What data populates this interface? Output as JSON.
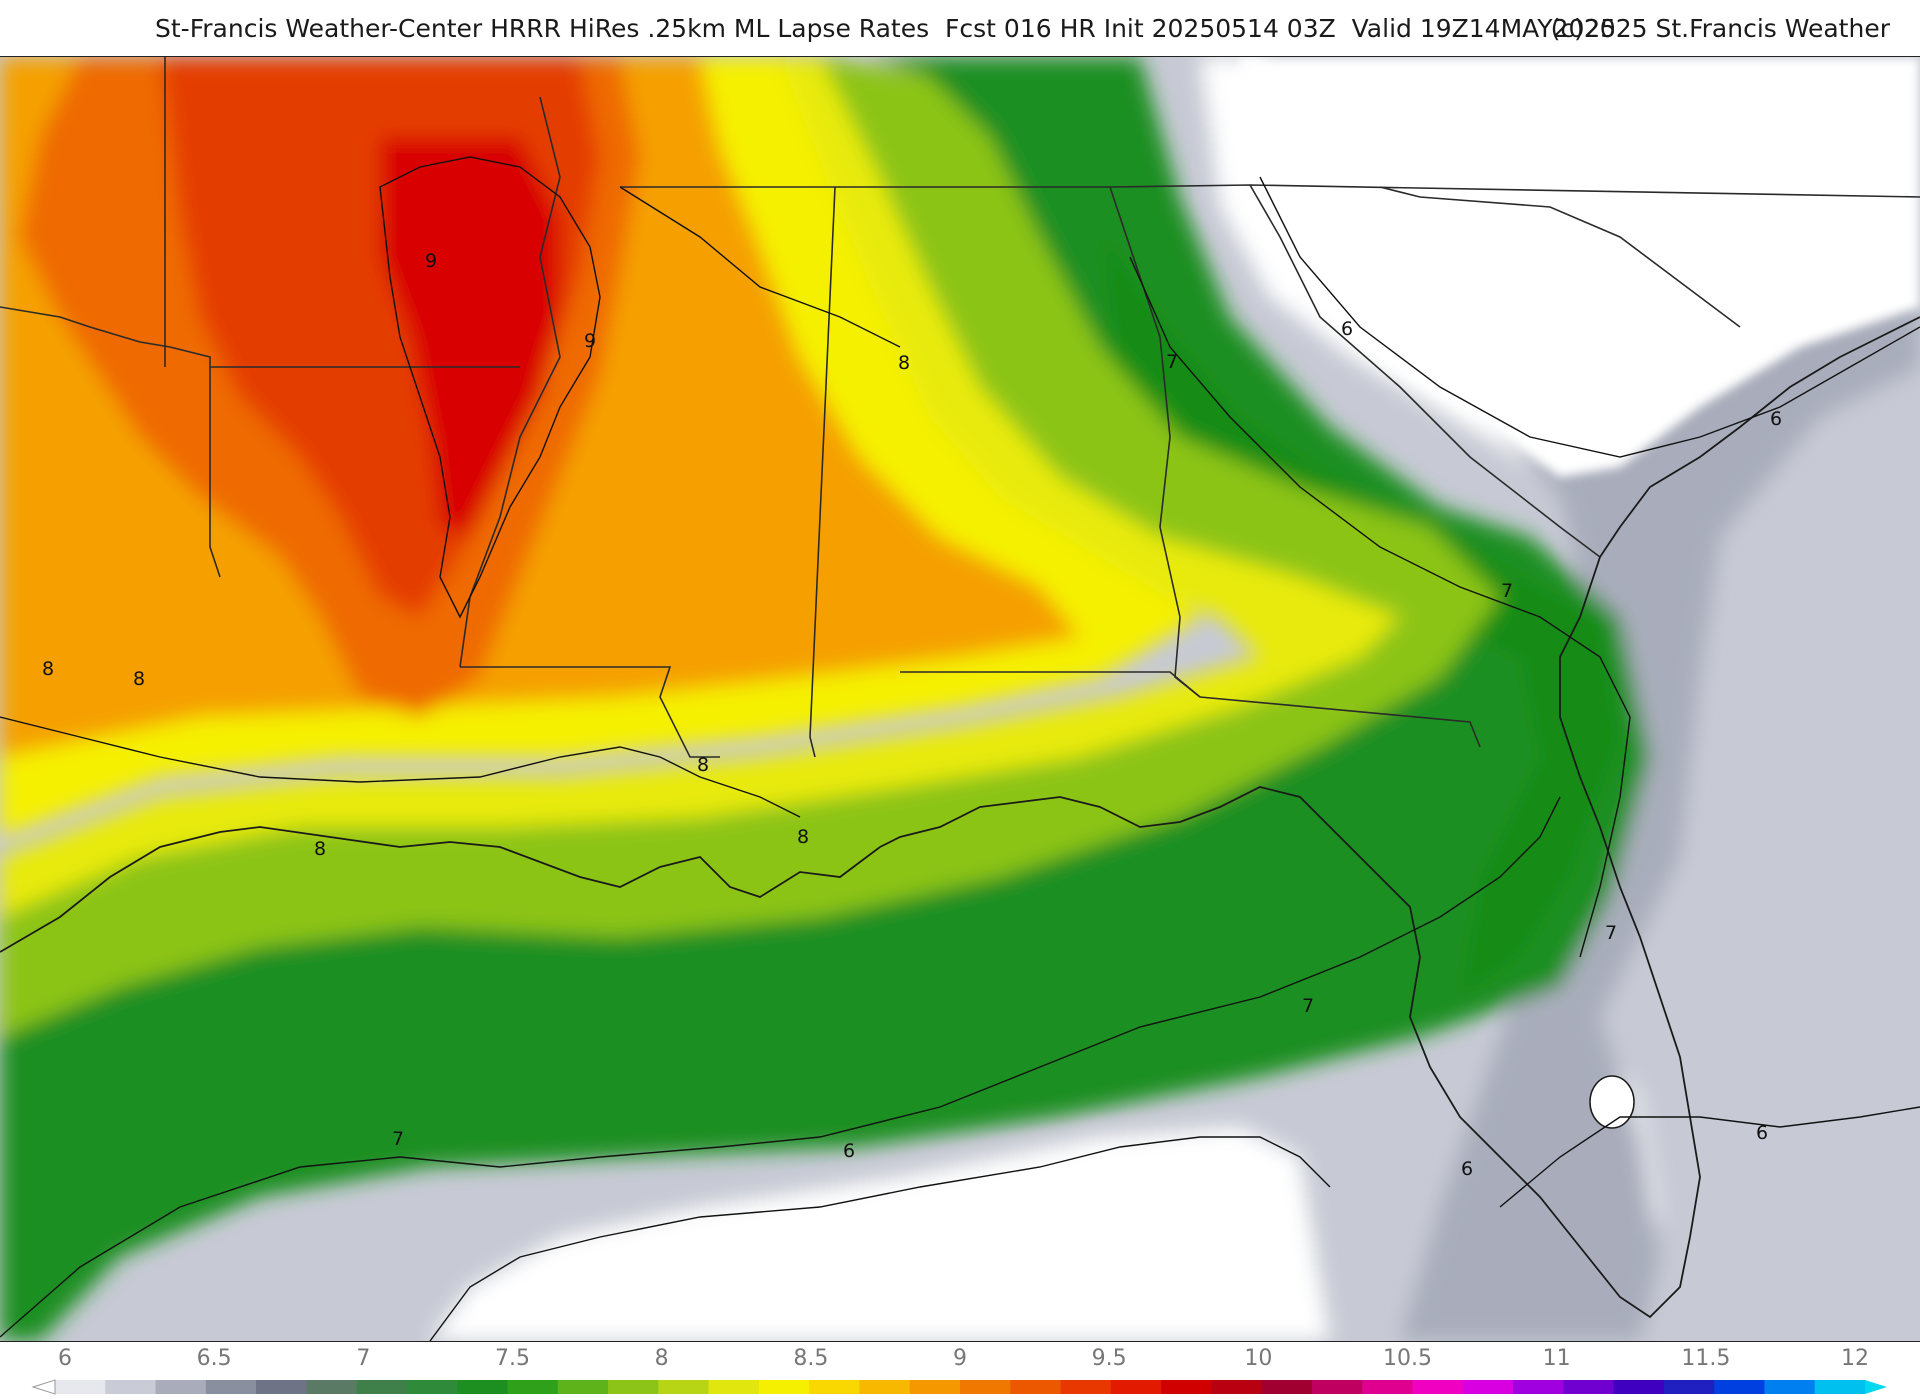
{
  "header": {
    "title": "St-Francis Weather-Center HRRR HiRes .25km ML Lapse Rates  Fcst 016 HR Init 20250514 03Z  Valid 19Z14MAY2025",
    "copyright": "(c)2025 St.Francis Weather"
  },
  "map": {
    "contour_labels": [
      "9",
      "9",
      "8",
      "8",
      "8",
      "8",
      "8",
      "8",
      "7",
      "7",
      "7",
      "7",
      "7",
      "6",
      "6",
      "6",
      "6",
      "6"
    ]
  },
  "colorbar": {
    "ticks": [
      "6",
      "6.5",
      "7",
      "7.5",
      "8",
      "8.5",
      "9",
      "9.5",
      "10",
      "10.5",
      "11",
      "11.5",
      "12"
    ],
    "colors": [
      "#e6e8ee",
      "#c9ccd6",
      "#a9adbb",
      "#8a8f9f",
      "#6e7486",
      "#5a7a66",
      "#3f7f4a",
      "#2f8a3a",
      "#1d8f20",
      "#2ea01a",
      "#5fb31a",
      "#8cc418",
      "#b8d515",
      "#e2e60f",
      "#f5f000",
      "#f8d800",
      "#f8b800",
      "#f59800",
      "#f07800",
      "#ec5800",
      "#e83800",
      "#e21a00",
      "#d00000",
      "#b80010",
      "#a00030",
      "#c00060",
      "#e00090",
      "#f000c0",
      "#d800e0",
      "#a000e0",
      "#7000d0",
      "#4000c0",
      "#2020c0",
      "#0040e0",
      "#0080f0",
      "#00c0f0"
    ]
  }
}
